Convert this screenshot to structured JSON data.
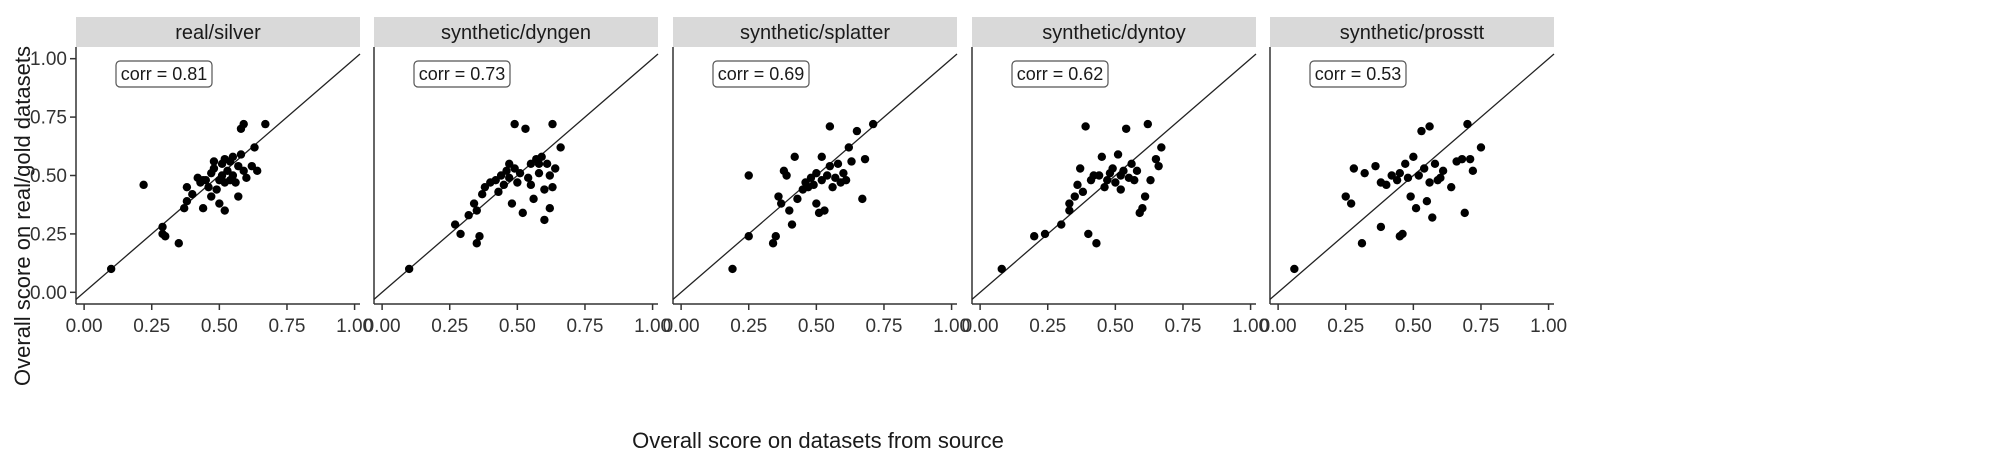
{
  "chart_data": {
    "type": "scatter",
    "xlabel": "Overall score on datasets from source",
    "ylabel": "Overall score on real/gold datasets",
    "xlim": [
      -0.03,
      1.02
    ],
    "ylim": [
      -0.05,
      1.05
    ],
    "x_ticks": [
      "0.00",
      "0.25",
      "0.50",
      "0.75",
      "1.00"
    ],
    "y_ticks": [
      "0.00",
      "0.25",
      "0.50",
      "0.75",
      "1.00"
    ],
    "x_tick_values": [
      0,
      0.25,
      0.5,
      0.75,
      1.0
    ],
    "y_tick_values": [
      0,
      0.25,
      0.5,
      0.75,
      1.0
    ],
    "reference_line": "y = x",
    "panels": [
      {
        "title": "real/silver",
        "corr_label": "corr = 0.81",
        "points": [
          [
            0.1,
            0.1
          ],
          [
            0.22,
            0.46
          ],
          [
            0.29,
            0.28
          ],
          [
            0.29,
            0.25
          ],
          [
            0.3,
            0.24
          ],
          [
            0.35,
            0.21
          ],
          [
            0.37,
            0.36
          ],
          [
            0.38,
            0.39
          ],
          [
            0.38,
            0.45
          ],
          [
            0.4,
            0.42
          ],
          [
            0.42,
            0.49
          ],
          [
            0.43,
            0.47
          ],
          [
            0.44,
            0.48
          ],
          [
            0.44,
            0.36
          ],
          [
            0.45,
            0.48
          ],
          [
            0.46,
            0.45
          ],
          [
            0.47,
            0.41
          ],
          [
            0.47,
            0.51
          ],
          [
            0.48,
            0.53
          ],
          [
            0.48,
            0.56
          ],
          [
            0.49,
            0.44
          ],
          [
            0.5,
            0.38
          ],
          [
            0.5,
            0.48
          ],
          [
            0.51,
            0.5
          ],
          [
            0.51,
            0.55
          ],
          [
            0.52,
            0.47
          ],
          [
            0.52,
            0.35
          ],
          [
            0.52,
            0.57
          ],
          [
            0.53,
            0.52
          ],
          [
            0.54,
            0.48
          ],
          [
            0.54,
            0.56
          ],
          [
            0.55,
            0.5
          ],
          [
            0.55,
            0.58
          ],
          [
            0.56,
            0.47
          ],
          [
            0.57,
            0.54
          ],
          [
            0.57,
            0.41
          ],
          [
            0.58,
            0.59
          ],
          [
            0.58,
            0.7
          ],
          [
            0.59,
            0.52
          ],
          [
            0.59,
            0.72
          ],
          [
            0.6,
            0.49
          ],
          [
            0.62,
            0.54
          ],
          [
            0.63,
            0.62
          ],
          [
            0.64,
            0.52
          ],
          [
            0.67,
            0.72
          ]
        ]
      },
      {
        "title": "synthetic/dyngen",
        "corr_label": "corr = 0.73",
        "points": [
          [
            0.1,
            0.1
          ],
          [
            0.27,
            0.29
          ],
          [
            0.29,
            0.25
          ],
          [
            0.32,
            0.33
          ],
          [
            0.34,
            0.38
          ],
          [
            0.35,
            0.35
          ],
          [
            0.35,
            0.21
          ],
          [
            0.36,
            0.24
          ],
          [
            0.37,
            0.42
          ],
          [
            0.38,
            0.45
          ],
          [
            0.4,
            0.47
          ],
          [
            0.42,
            0.48
          ],
          [
            0.43,
            0.43
          ],
          [
            0.44,
            0.5
          ],
          [
            0.45,
            0.46
          ],
          [
            0.46,
            0.52
          ],
          [
            0.47,
            0.55
          ],
          [
            0.47,
            0.49
          ],
          [
            0.48,
            0.38
          ],
          [
            0.49,
            0.53
          ],
          [
            0.49,
            0.72
          ],
          [
            0.5,
            0.47
          ],
          [
            0.51,
            0.51
          ],
          [
            0.52,
            0.34
          ],
          [
            0.53,
            0.7
          ],
          [
            0.54,
            0.49
          ],
          [
            0.55,
            0.55
          ],
          [
            0.55,
            0.46
          ],
          [
            0.56,
            0.4
          ],
          [
            0.57,
            0.57
          ],
          [
            0.58,
            0.55
          ],
          [
            0.58,
            0.51
          ],
          [
            0.59,
            0.58
          ],
          [
            0.6,
            0.31
          ],
          [
            0.6,
            0.44
          ],
          [
            0.61,
            0.55
          ],
          [
            0.62,
            0.5
          ],
          [
            0.62,
            0.36
          ],
          [
            0.63,
            0.72
          ],
          [
            0.63,
            0.45
          ],
          [
            0.64,
            0.53
          ],
          [
            0.66,
            0.62
          ]
        ]
      },
      {
        "title": "synthetic/splatter",
        "corr_label": "corr = 0.69",
        "points": [
          [
            0.19,
            0.1
          ],
          [
            0.25,
            0.5
          ],
          [
            0.25,
            0.24
          ],
          [
            0.34,
            0.21
          ],
          [
            0.35,
            0.24
          ],
          [
            0.36,
            0.41
          ],
          [
            0.37,
            0.38
          ],
          [
            0.38,
            0.52
          ],
          [
            0.39,
            0.5
          ],
          [
            0.4,
            0.35
          ],
          [
            0.41,
            0.29
          ],
          [
            0.42,
            0.58
          ],
          [
            0.43,
            0.4
          ],
          [
            0.45,
            0.44
          ],
          [
            0.46,
            0.47
          ],
          [
            0.47,
            0.45
          ],
          [
            0.48,
            0.49
          ],
          [
            0.49,
            0.46
          ],
          [
            0.5,
            0.51
          ],
          [
            0.5,
            0.38
          ],
          [
            0.51,
            0.34
          ],
          [
            0.52,
            0.58
          ],
          [
            0.52,
            0.48
          ],
          [
            0.53,
            0.35
          ],
          [
            0.54,
            0.5
          ],
          [
            0.55,
            0.54
          ],
          [
            0.55,
            0.71
          ],
          [
            0.56,
            0.45
          ],
          [
            0.57,
            0.49
          ],
          [
            0.58,
            0.55
          ],
          [
            0.59,
            0.47
          ],
          [
            0.6,
            0.51
          ],
          [
            0.61,
            0.48
          ],
          [
            0.62,
            0.62
          ],
          [
            0.63,
            0.56
          ],
          [
            0.65,
            0.69
          ],
          [
            0.67,
            0.4
          ],
          [
            0.68,
            0.57
          ],
          [
            0.71,
            0.72
          ]
        ]
      },
      {
        "title": "synthetic/dyntoy",
        "corr_label": "corr = 0.62",
        "points": [
          [
            0.08,
            0.1
          ],
          [
            0.2,
            0.24
          ],
          [
            0.24,
            0.25
          ],
          [
            0.3,
            0.29
          ],
          [
            0.33,
            0.38
          ],
          [
            0.33,
            0.35
          ],
          [
            0.35,
            0.41
          ],
          [
            0.36,
            0.46
          ],
          [
            0.37,
            0.53
          ],
          [
            0.38,
            0.43
          ],
          [
            0.39,
            0.71
          ],
          [
            0.4,
            0.25
          ],
          [
            0.41,
            0.48
          ],
          [
            0.42,
            0.5
          ],
          [
            0.43,
            0.21
          ],
          [
            0.44,
            0.5
          ],
          [
            0.45,
            0.58
          ],
          [
            0.46,
            0.45
          ],
          [
            0.47,
            0.48
          ],
          [
            0.48,
            0.51
          ],
          [
            0.49,
            0.53
          ],
          [
            0.5,
            0.47
          ],
          [
            0.51,
            0.59
          ],
          [
            0.52,
            0.5
          ],
          [
            0.52,
            0.44
          ],
          [
            0.53,
            0.52
          ],
          [
            0.54,
            0.7
          ],
          [
            0.55,
            0.49
          ],
          [
            0.56,
            0.55
          ],
          [
            0.57,
            0.48
          ],
          [
            0.58,
            0.52
          ],
          [
            0.59,
            0.34
          ],
          [
            0.6,
            0.36
          ],
          [
            0.61,
            0.41
          ],
          [
            0.62,
            0.72
          ],
          [
            0.63,
            0.48
          ],
          [
            0.65,
            0.57
          ],
          [
            0.66,
            0.54
          ],
          [
            0.67,
            0.62
          ]
        ]
      },
      {
        "title": "synthetic/prosstt",
        "corr_label": "corr = 0.53",
        "points": [
          [
            0.06,
            0.1
          ],
          [
            0.25,
            0.41
          ],
          [
            0.27,
            0.38
          ],
          [
            0.28,
            0.53
          ],
          [
            0.31,
            0.21
          ],
          [
            0.32,
            0.51
          ],
          [
            0.36,
            0.54
          ],
          [
            0.38,
            0.28
          ],
          [
            0.38,
            0.47
          ],
          [
            0.4,
            0.46
          ],
          [
            0.42,
            0.5
          ],
          [
            0.44,
            0.48
          ],
          [
            0.45,
            0.24
          ],
          [
            0.45,
            0.51
          ],
          [
            0.46,
            0.25
          ],
          [
            0.47,
            0.55
          ],
          [
            0.48,
            0.49
          ],
          [
            0.49,
            0.41
          ],
          [
            0.5,
            0.58
          ],
          [
            0.51,
            0.36
          ],
          [
            0.52,
            0.5
          ],
          [
            0.53,
            0.69
          ],
          [
            0.54,
            0.53
          ],
          [
            0.55,
            0.39
          ],
          [
            0.56,
            0.71
          ],
          [
            0.56,
            0.47
          ],
          [
            0.57,
            0.32
          ],
          [
            0.58,
            0.55
          ],
          [
            0.59,
            0.48
          ],
          [
            0.6,
            0.49
          ],
          [
            0.61,
            0.52
          ],
          [
            0.64,
            0.45
          ],
          [
            0.66,
            0.56
          ],
          [
            0.68,
            0.57
          ],
          [
            0.69,
            0.34
          ],
          [
            0.7,
            0.72
          ],
          [
            0.71,
            0.57
          ],
          [
            0.72,
            0.52
          ],
          [
            0.75,
            0.62
          ]
        ]
      }
    ]
  },
  "colors": {
    "strip_bg": "#d9d9d9",
    "point": "#000000",
    "axis": "#333333",
    "line": "#222222"
  }
}
